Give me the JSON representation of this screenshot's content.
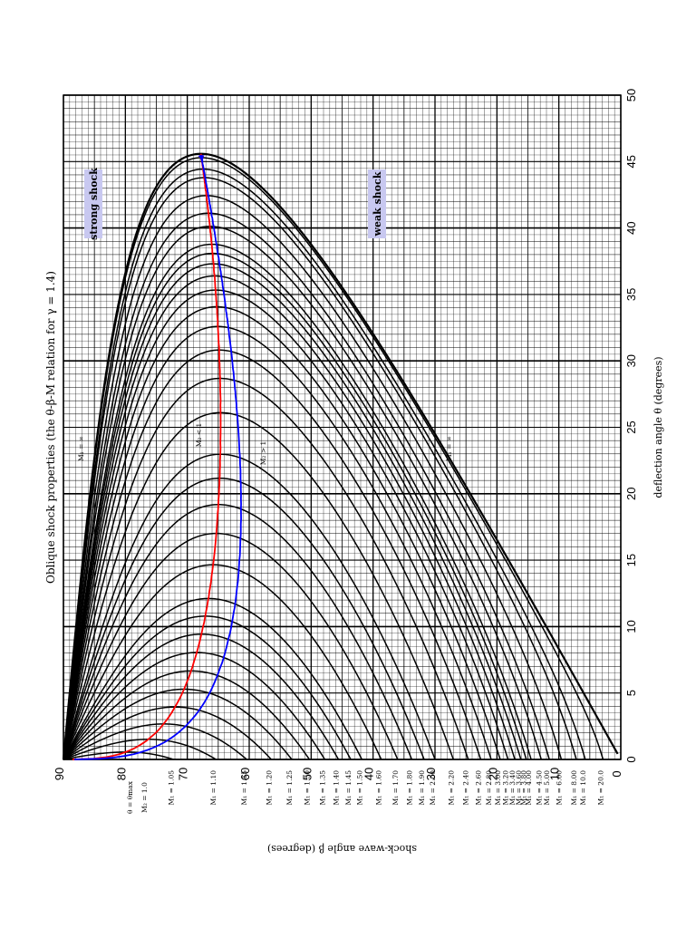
{
  "chart_data": {
    "type": "line",
    "title": "Oblique shock properties (the θ-β-M relation for γ = 1.4)",
    "xlabel": "deflection angle θ (degrees)",
    "ylabel": "shock-wave angle β (degrees)",
    "xlim": [
      0,
      50
    ],
    "ylim": [
      0,
      90
    ],
    "x_ticks": [
      "0",
      "5",
      "10",
      "15",
      "20",
      "25",
      "30",
      "35",
      "40",
      "45",
      "50"
    ],
    "y_ticks": [
      "0",
      "10",
      "20",
      "30",
      "40",
      "50",
      "60",
      "70",
      "80",
      "90"
    ],
    "gamma": 1.4,
    "grid": true,
    "mach_numbers": [
      1.05,
      1.1,
      1.15,
      1.2,
      1.25,
      1.3,
      1.35,
      1.4,
      1.45,
      1.5,
      1.6,
      1.7,
      1.8,
      1.9,
      2.0,
      2.2,
      2.4,
      2.6,
      2.8,
      3.0,
      3.2,
      3.4,
      3.6,
      3.8,
      4.0,
      4.5,
      5.0,
      6.0,
      8.0,
      10.0,
      20.0
    ],
    "mach_labels": [
      "M₁ = 1.05",
      "M₁ = 1.10",
      "M₁ = 1.15",
      "M₁ = 1.20",
      "M₁ = 1.25",
      "M₁ = 1.30",
      "M₁ = 1.35",
      "M₁ = 1.40",
      "M₁ = 1.45",
      "M₁ = 1.50",
      "M₁ = 1.60",
      "M₁ = 1.70",
      "M₁ = 1.80",
      "M₁ = 1.90",
      "M₁ = 2.00",
      "M₁ = 2.20",
      "M₁ = 2.40",
      "M₁ = 2.60",
      "M₁ = 2.80",
      "M₁ = 3.00",
      "M₁ = 3.20",
      "M₁ = 3.40",
      "M₁ = 3.60",
      "M₁ = 3.80",
      "M₁ = 4.00",
      "M₁ = 4.50",
      "M₁ = 5.00",
      "M₁ = 6.00",
      "M₁ = 8.00",
      "M₁ = 10.0",
      "M₁ = 20.0"
    ],
    "series": [
      {
        "name": "M₁ = ∞",
        "color": "#000000"
      },
      {
        "name": "θ = θmax",
        "color": "#ff0000"
      },
      {
        "name": "M₂ = 1.0",
        "color": "#0000ff"
      }
    ],
    "annotations": {
      "strong": "strong shock",
      "weak": "weak shock",
      "m2_lt": "M₂ < 1",
      "m2_gt": "M₂ > 1",
      "m_inf_top": "M₁ = ∞",
      "m_inf_weak": "M₁ = ∞"
    }
  }
}
